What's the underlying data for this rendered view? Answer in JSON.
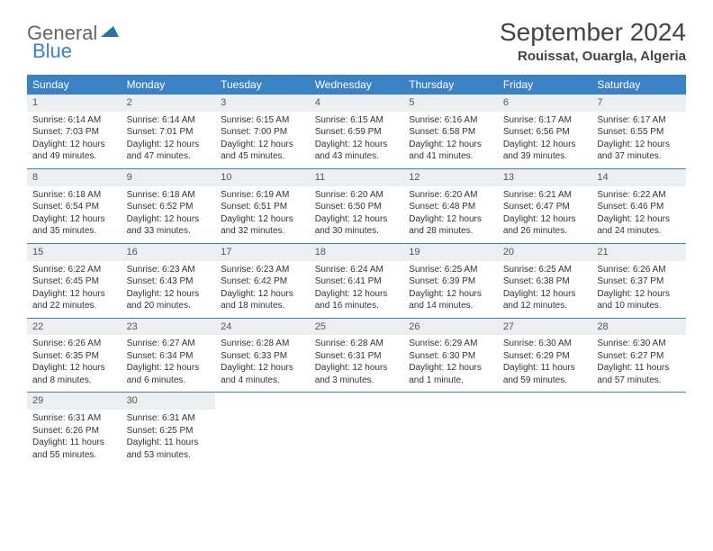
{
  "logo": {
    "general": "General",
    "blue": "Blue"
  },
  "title": "September 2024",
  "location": "Rouissat, Ouargla, Algeria",
  "colors": {
    "header_bg": "#3b82c4",
    "header_fg": "#ffffff",
    "daynum_bg": "#eceff1",
    "row_border": "#3b82c4",
    "text": "#333333",
    "logo_gray": "#666666",
    "logo_blue": "#3b82c4"
  },
  "weekdays": [
    "Sunday",
    "Monday",
    "Tuesday",
    "Wednesday",
    "Thursday",
    "Friday",
    "Saturday"
  ],
  "weeks": [
    [
      {
        "n": "1",
        "sunrise": "Sunrise: 6:14 AM",
        "sunset": "Sunset: 7:03 PM",
        "day1": "Daylight: 12 hours",
        "day2": "and 49 minutes."
      },
      {
        "n": "2",
        "sunrise": "Sunrise: 6:14 AM",
        "sunset": "Sunset: 7:01 PM",
        "day1": "Daylight: 12 hours",
        "day2": "and 47 minutes."
      },
      {
        "n": "3",
        "sunrise": "Sunrise: 6:15 AM",
        "sunset": "Sunset: 7:00 PM",
        "day1": "Daylight: 12 hours",
        "day2": "and 45 minutes."
      },
      {
        "n": "4",
        "sunrise": "Sunrise: 6:15 AM",
        "sunset": "Sunset: 6:59 PM",
        "day1": "Daylight: 12 hours",
        "day2": "and 43 minutes."
      },
      {
        "n": "5",
        "sunrise": "Sunrise: 6:16 AM",
        "sunset": "Sunset: 6:58 PM",
        "day1": "Daylight: 12 hours",
        "day2": "and 41 minutes."
      },
      {
        "n": "6",
        "sunrise": "Sunrise: 6:17 AM",
        "sunset": "Sunset: 6:56 PM",
        "day1": "Daylight: 12 hours",
        "day2": "and 39 minutes."
      },
      {
        "n": "7",
        "sunrise": "Sunrise: 6:17 AM",
        "sunset": "Sunset: 6:55 PM",
        "day1": "Daylight: 12 hours",
        "day2": "and 37 minutes."
      }
    ],
    [
      {
        "n": "8",
        "sunrise": "Sunrise: 6:18 AM",
        "sunset": "Sunset: 6:54 PM",
        "day1": "Daylight: 12 hours",
        "day2": "and 35 minutes."
      },
      {
        "n": "9",
        "sunrise": "Sunrise: 6:18 AM",
        "sunset": "Sunset: 6:52 PM",
        "day1": "Daylight: 12 hours",
        "day2": "and 33 minutes."
      },
      {
        "n": "10",
        "sunrise": "Sunrise: 6:19 AM",
        "sunset": "Sunset: 6:51 PM",
        "day1": "Daylight: 12 hours",
        "day2": "and 32 minutes."
      },
      {
        "n": "11",
        "sunrise": "Sunrise: 6:20 AM",
        "sunset": "Sunset: 6:50 PM",
        "day1": "Daylight: 12 hours",
        "day2": "and 30 minutes."
      },
      {
        "n": "12",
        "sunrise": "Sunrise: 6:20 AM",
        "sunset": "Sunset: 6:48 PM",
        "day1": "Daylight: 12 hours",
        "day2": "and 28 minutes."
      },
      {
        "n": "13",
        "sunrise": "Sunrise: 6:21 AM",
        "sunset": "Sunset: 6:47 PM",
        "day1": "Daylight: 12 hours",
        "day2": "and 26 minutes."
      },
      {
        "n": "14",
        "sunrise": "Sunrise: 6:22 AM",
        "sunset": "Sunset: 6:46 PM",
        "day1": "Daylight: 12 hours",
        "day2": "and 24 minutes."
      }
    ],
    [
      {
        "n": "15",
        "sunrise": "Sunrise: 6:22 AM",
        "sunset": "Sunset: 6:45 PM",
        "day1": "Daylight: 12 hours",
        "day2": "and 22 minutes."
      },
      {
        "n": "16",
        "sunrise": "Sunrise: 6:23 AM",
        "sunset": "Sunset: 6:43 PM",
        "day1": "Daylight: 12 hours",
        "day2": "and 20 minutes."
      },
      {
        "n": "17",
        "sunrise": "Sunrise: 6:23 AM",
        "sunset": "Sunset: 6:42 PM",
        "day1": "Daylight: 12 hours",
        "day2": "and 18 minutes."
      },
      {
        "n": "18",
        "sunrise": "Sunrise: 6:24 AM",
        "sunset": "Sunset: 6:41 PM",
        "day1": "Daylight: 12 hours",
        "day2": "and 16 minutes."
      },
      {
        "n": "19",
        "sunrise": "Sunrise: 6:25 AM",
        "sunset": "Sunset: 6:39 PM",
        "day1": "Daylight: 12 hours",
        "day2": "and 14 minutes."
      },
      {
        "n": "20",
        "sunrise": "Sunrise: 6:25 AM",
        "sunset": "Sunset: 6:38 PM",
        "day1": "Daylight: 12 hours",
        "day2": "and 12 minutes."
      },
      {
        "n": "21",
        "sunrise": "Sunrise: 6:26 AM",
        "sunset": "Sunset: 6:37 PM",
        "day1": "Daylight: 12 hours",
        "day2": "and 10 minutes."
      }
    ],
    [
      {
        "n": "22",
        "sunrise": "Sunrise: 6:26 AM",
        "sunset": "Sunset: 6:35 PM",
        "day1": "Daylight: 12 hours",
        "day2": "and 8 minutes."
      },
      {
        "n": "23",
        "sunrise": "Sunrise: 6:27 AM",
        "sunset": "Sunset: 6:34 PM",
        "day1": "Daylight: 12 hours",
        "day2": "and 6 minutes."
      },
      {
        "n": "24",
        "sunrise": "Sunrise: 6:28 AM",
        "sunset": "Sunset: 6:33 PM",
        "day1": "Daylight: 12 hours",
        "day2": "and 4 minutes."
      },
      {
        "n": "25",
        "sunrise": "Sunrise: 6:28 AM",
        "sunset": "Sunset: 6:31 PM",
        "day1": "Daylight: 12 hours",
        "day2": "and 3 minutes."
      },
      {
        "n": "26",
        "sunrise": "Sunrise: 6:29 AM",
        "sunset": "Sunset: 6:30 PM",
        "day1": "Daylight: 12 hours",
        "day2": "and 1 minute."
      },
      {
        "n": "27",
        "sunrise": "Sunrise: 6:30 AM",
        "sunset": "Sunset: 6:29 PM",
        "day1": "Daylight: 11 hours",
        "day2": "and 59 minutes."
      },
      {
        "n": "28",
        "sunrise": "Sunrise: 6:30 AM",
        "sunset": "Sunset: 6:27 PM",
        "day1": "Daylight: 11 hours",
        "day2": "and 57 minutes."
      }
    ],
    [
      {
        "n": "29",
        "sunrise": "Sunrise: 6:31 AM",
        "sunset": "Sunset: 6:26 PM",
        "day1": "Daylight: 11 hours",
        "day2": "and 55 minutes."
      },
      {
        "n": "30",
        "sunrise": "Sunrise: 6:31 AM",
        "sunset": "Sunset: 6:25 PM",
        "day1": "Daylight: 11 hours",
        "day2": "and 53 minutes."
      },
      {
        "empty": true
      },
      {
        "empty": true
      },
      {
        "empty": true
      },
      {
        "empty": true
      },
      {
        "empty": true
      }
    ]
  ]
}
